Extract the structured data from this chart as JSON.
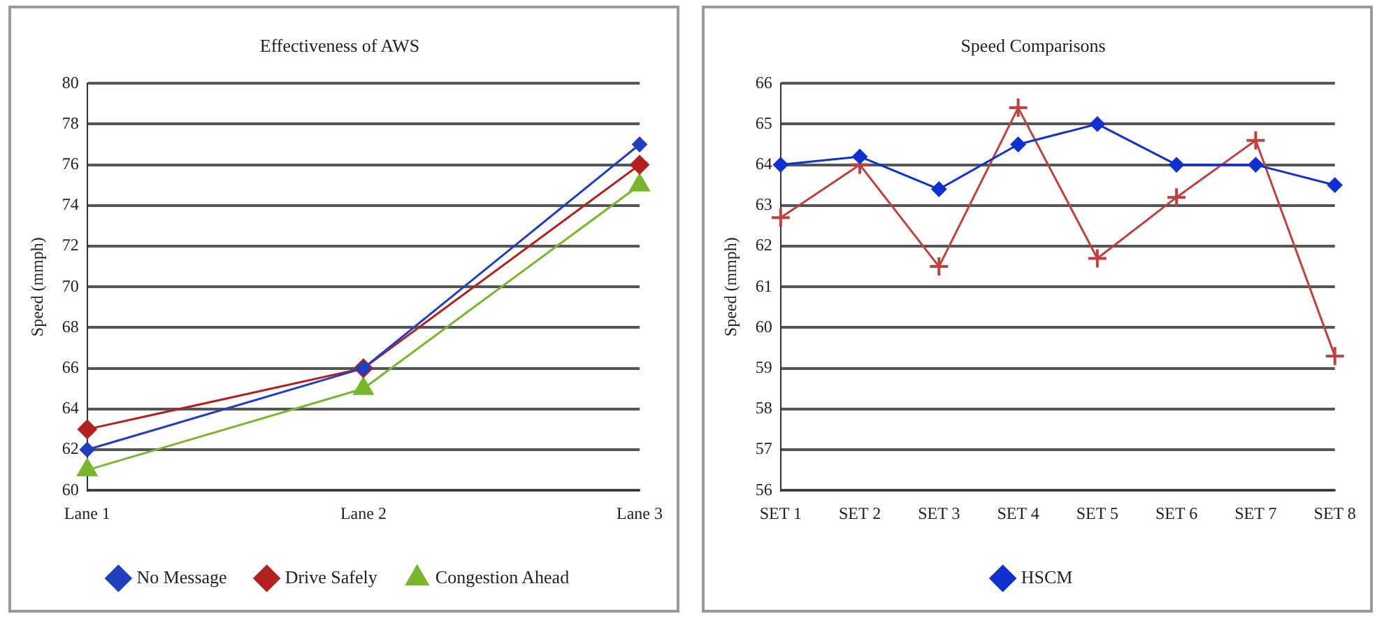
{
  "chart_data": [
    {
      "type": "line",
      "title": "Effectiveness of AWS",
      "ylabel": "Speed (mmph)",
      "categories": [
        "Lane 1",
        "Lane 2",
        "Lane 3"
      ],
      "ylim": [
        60,
        80
      ],
      "yticks": [
        60,
        62,
        64,
        66,
        68,
        70,
        72,
        74,
        76,
        78,
        80
      ],
      "grid": "y",
      "legend": "bottom",
      "marker": "diamond",
      "series": [
        {
          "name": "No Message",
          "color": "#1f3fbf",
          "values": [
            62,
            66,
            77
          ]
        },
        {
          "name": "Drive Safely",
          "color": "#b32020",
          "values": [
            63,
            66,
            76
          ]
        },
        {
          "name": "Congestion Ahead",
          "color": "#7ab52e",
          "values": [
            61,
            65,
            75
          ],
          "marker": "triangle"
        }
      ]
    },
    {
      "type": "line",
      "title": "Speed Comparisons",
      "ylabel": "Speed (mmph)",
      "categories": [
        "SET 1",
        "SET 2",
        "SET 3",
        "SET 4",
        "SET 5",
        "SET 6",
        "SET 7",
        "SET 8"
      ],
      "ylim": [
        56,
        66
      ],
      "yticks": [
        56,
        57,
        58,
        59,
        60,
        61,
        62,
        63,
        64,
        65,
        66
      ],
      "grid": "y",
      "legend": "bottom",
      "marker": "diamond",
      "series": [
        {
          "name": "HSCM",
          "color": "#1030d0",
          "values": [
            64.0,
            64.2,
            63.4,
            64.5,
            65.0,
            64.0,
            64.0,
            63.5
          ]
        },
        {
          "color": "#c04040",
          "values": [
            62.7,
            64.0,
            61.5,
            65.4,
            61.7,
            63.2,
            64.6,
            59.3
          ],
          "marker": "cross"
        }
      ]
    }
  ]
}
